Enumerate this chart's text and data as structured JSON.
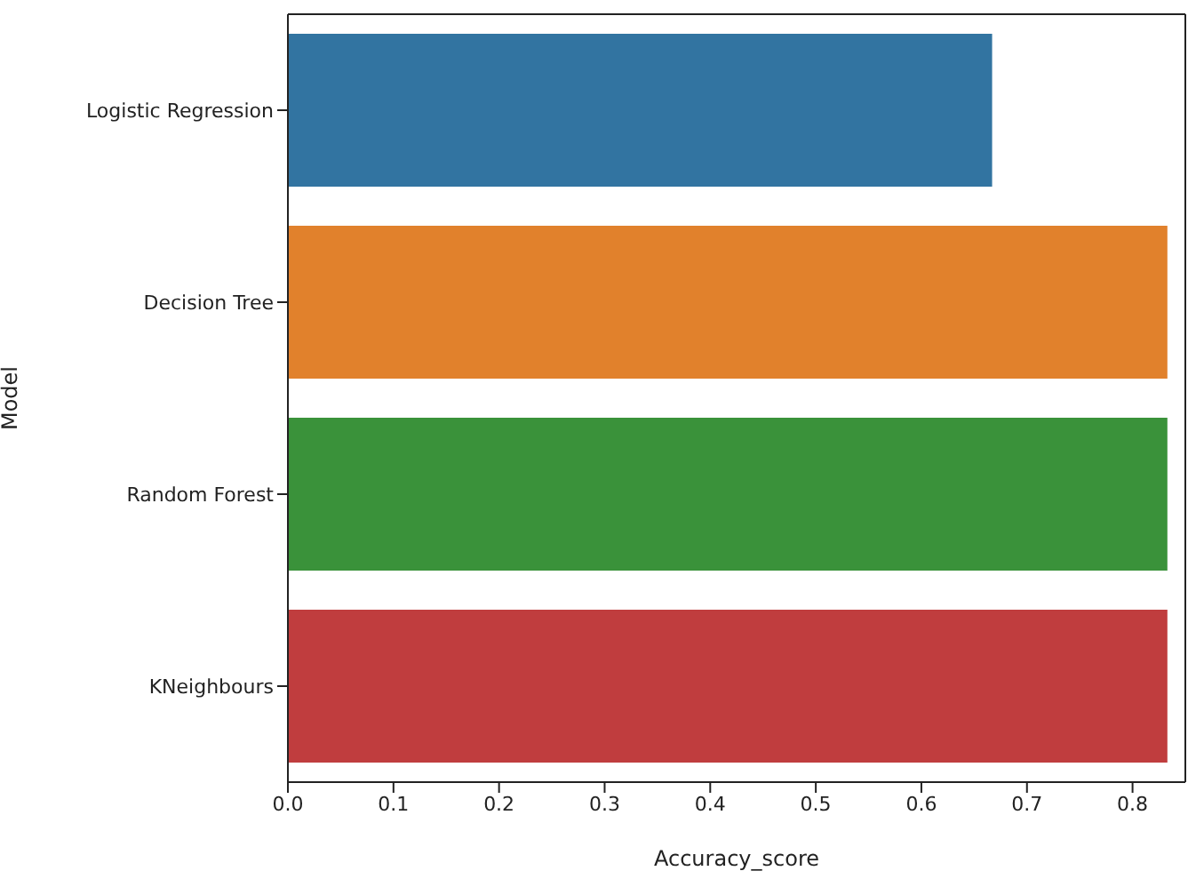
{
  "chart_data": {
    "type": "bar",
    "orientation": "horizontal",
    "xlabel": "Accuracy_score",
    "ylabel": "Model",
    "categories": [
      "Logistic Regression",
      "Decision Tree",
      "Random Forest",
      "KNeighbours"
    ],
    "values": [
      0.667,
      0.833,
      0.833,
      0.833
    ],
    "colors": [
      "#3274a1",
      "#e1812c",
      "#3a923a",
      "#c03d3e"
    ],
    "xlim": [
      0,
      0.85
    ],
    "xticks": [
      {
        "value": 0,
        "label": "0.0"
      },
      0.1,
      0.2,
      0.3,
      0.4,
      0.5,
      0.6,
      0.7,
      0.8
    ],
    "grid": false
  }
}
